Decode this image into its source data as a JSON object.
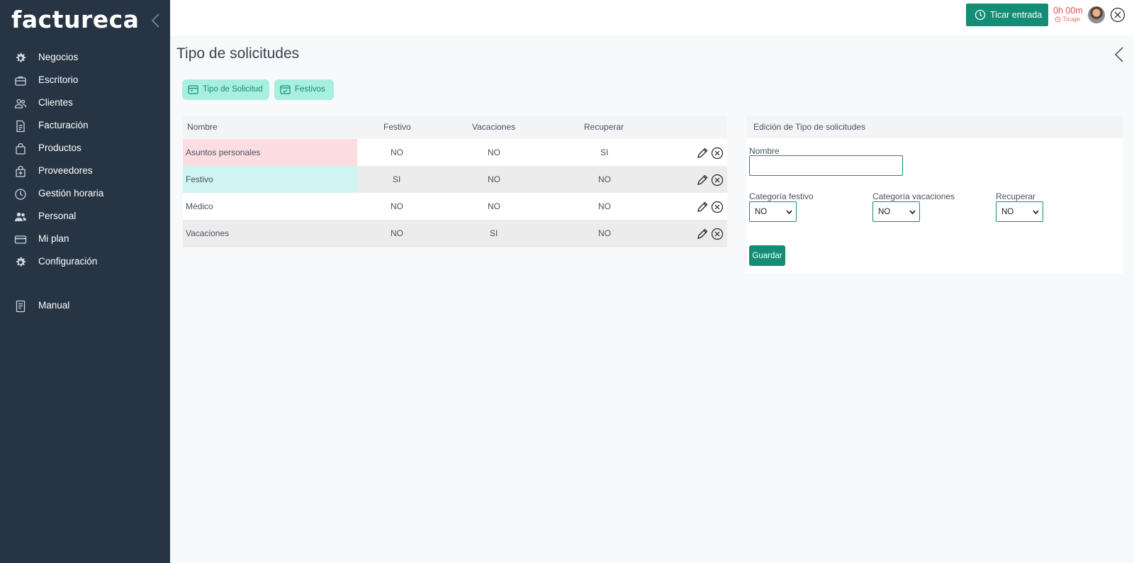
{
  "brand": {
    "logo": "factureca"
  },
  "sidebar": {
    "items": [
      {
        "label": "Negocios",
        "icon": "gear-icon"
      },
      {
        "label": "Escritorio",
        "icon": "briefcase-icon"
      },
      {
        "label": "Clientes",
        "icon": "users-icon"
      },
      {
        "label": "Facturación",
        "icon": "invoice-icon"
      },
      {
        "label": "Productos",
        "icon": "shopping-bag-icon"
      },
      {
        "label": "Proveedores",
        "icon": "supplier-bag-icon"
      },
      {
        "label": "Gestión horaria",
        "icon": "clock-icon"
      },
      {
        "label": "Personal",
        "icon": "people-icon"
      },
      {
        "label": "Mi plan",
        "icon": "credit-card-icon"
      },
      {
        "label": "Configuración",
        "icon": "settings-gear-icon"
      },
      {
        "label": "Manual",
        "icon": "document-icon"
      }
    ]
  },
  "header": {
    "ticar_label": "Ticar entrada",
    "timer": "0h 00m",
    "timer_sub": "Ticaje"
  },
  "page": {
    "title": "Tipo de solicitudes",
    "tabs": [
      {
        "label": "Tipo de Solicitud"
      },
      {
        "label": "Festivos"
      }
    ]
  },
  "table": {
    "columns": [
      "Nombre",
      "Festivo",
      "Vacaciones",
      "Recuperar"
    ],
    "rows": [
      {
        "nombre": "Asuntos personales",
        "festivo": "NO",
        "vacaciones": "NO",
        "recuperar": "SI",
        "color": "#fcdde1"
      },
      {
        "nombre": "Festivo",
        "festivo": "SI",
        "vacaciones": "NO",
        "recuperar": "NO",
        "color": "#cff4f1"
      },
      {
        "nombre": "Médico",
        "festivo": "NO",
        "vacaciones": "NO",
        "recuperar": "NO",
        "color": ""
      },
      {
        "nombre": "Vacaciones",
        "festivo": "NO",
        "vacaciones": "SI",
        "recuperar": "NO",
        "color": ""
      }
    ]
  },
  "edit": {
    "title": "Edición de Tipo de solicitudes",
    "nombre_label": "Nombre",
    "nombre_value": "",
    "cat_festivo_label": "Categoría festivo",
    "cat_festivo_value": "NO",
    "cat_vacaciones_label": "Categoría vacaciones",
    "cat_vacaciones_value": "NO",
    "recuperar_label": "Recuperar",
    "recuperar_value": "NO",
    "save_label": "Guardar"
  },
  "colors": {
    "sidebar_bg": "#273443",
    "accent": "#138d75",
    "tab_bg": "#a8efe0",
    "timer_red": "#e05050"
  }
}
